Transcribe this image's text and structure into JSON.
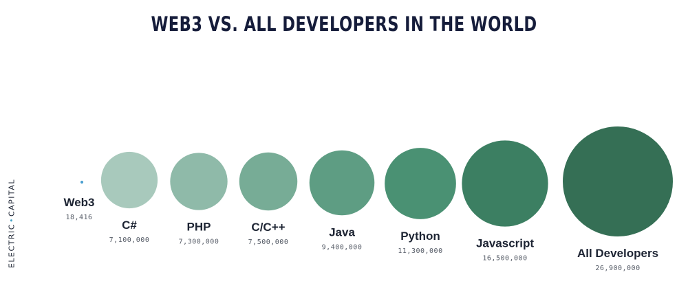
{
  "page": {
    "title": "WEB3 VS. ALL DEVELOPERS IN THE WORLD",
    "brand_left": "ELECTRIC",
    "brand_sep": "•",
    "brand_right": "CAPITAL"
  },
  "chart_data": {
    "type": "bubble",
    "title": "WEB3 VS. ALL DEVELOPERS IN THE WORLD",
    "categories": [
      "Web3",
      "C#",
      "PHP",
      "C/C++",
      "Java",
      "Python",
      "Javascript",
      "All Developers"
    ],
    "values": [
      18416,
      7100000,
      7300000,
      7500000,
      9400000,
      11300000,
      16500000,
      26900000
    ],
    "value_labels": [
      "18,416",
      "7,100,000",
      "7,300,000",
      "7,500,000",
      "9,400,000",
      "11,300,000",
      "16,500,000",
      "26,900,000"
    ],
    "colors": [
      "#4a9fd0",
      "#a8c9bc",
      "#8fbaa9",
      "#77ac96",
      "#5e9d83",
      "#4a9173",
      "#3c7f62",
      "#356f55"
    ],
    "bubble_area_proportional_to_value": true
  }
}
